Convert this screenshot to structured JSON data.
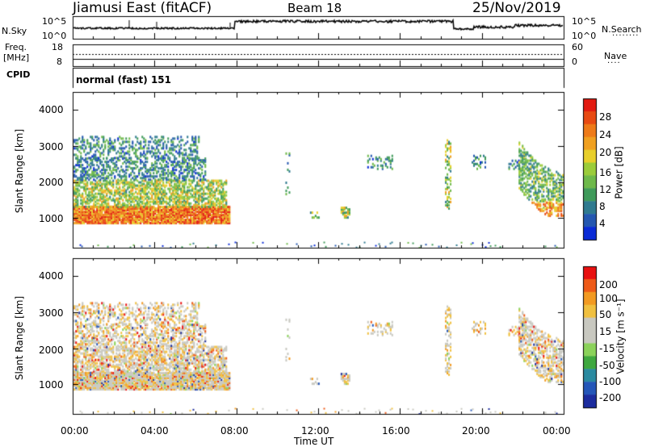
{
  "header": {
    "station": "Jiamusi East (fitACF)",
    "beam": "Beam 18",
    "date": "25/Nov/2019"
  },
  "panels": {
    "nsky_label": "N.Sky",
    "nsearch_label": "N.Search",
    "nsearch_legend": "........",
    "nsky_ticks": [
      "10^5",
      "10^0"
    ],
    "freq_label": "Freq.",
    "freq_unit": "[MHz]",
    "freq_ticks": [
      "18",
      "8"
    ],
    "nave_label": "Nave",
    "nave_legend": "....",
    "nave_ticks": [
      "60",
      "0"
    ],
    "cpid_label": "CPID",
    "cpid_value": "normal (fast) 151"
  },
  "colors": {
    "power": [
      "#0a2bd6",
      "#2457b0",
      "#2f7a8f",
      "#3f9a5a",
      "#6eb94a",
      "#9bcc3a",
      "#e8cf2b",
      "#f0a020",
      "#ee7a18",
      "#e84a12",
      "#e21a10"
    ],
    "velocity": [
      "#e81010",
      "#ee5a18",
      "#f29a22",
      "#f0c040",
      "#c8c8c0",
      "#c8c8c0",
      "#8bd25a",
      "#3fa83f",
      "#2a8aa0",
      "#2456b8",
      "#1c2c9e"
    ]
  },
  "chart_data": [
    {
      "type": "heatmap",
      "name": "power",
      "ylabel": "Slant Range [km]",
      "y_ticks": [
        "1000",
        "2000",
        "3000",
        "4000"
      ],
      "ylim": [
        180,
        4500
      ],
      "xlim": [
        0,
        24
      ],
      "colorbar_label": "Power [dB]",
      "colorbar_ticks": [
        "4",
        "8",
        "12",
        "16",
        "20",
        "24",
        "28"
      ],
      "colorbar_range": [
        0,
        31
      ]
    },
    {
      "type": "heatmap",
      "name": "velocity",
      "ylabel": "Slant Range [km]",
      "y_ticks": [
        "1000",
        "2000",
        "3000",
        "4000"
      ],
      "ylim": [
        180,
        4500
      ],
      "xlim": [
        0,
        24
      ],
      "xlabel": "Time UT",
      "x_ticks": [
        "00:00",
        "04:00",
        "08:00",
        "12:00",
        "16:00",
        "20:00",
        "00:00"
      ],
      "colorbar_label": "Velocity [m s⁻¹]",
      "colorbar_ticks": [
        "200",
        "100",
        "50",
        "15",
        "-15",
        "-50",
        "-100",
        "-200"
      ]
    }
  ]
}
